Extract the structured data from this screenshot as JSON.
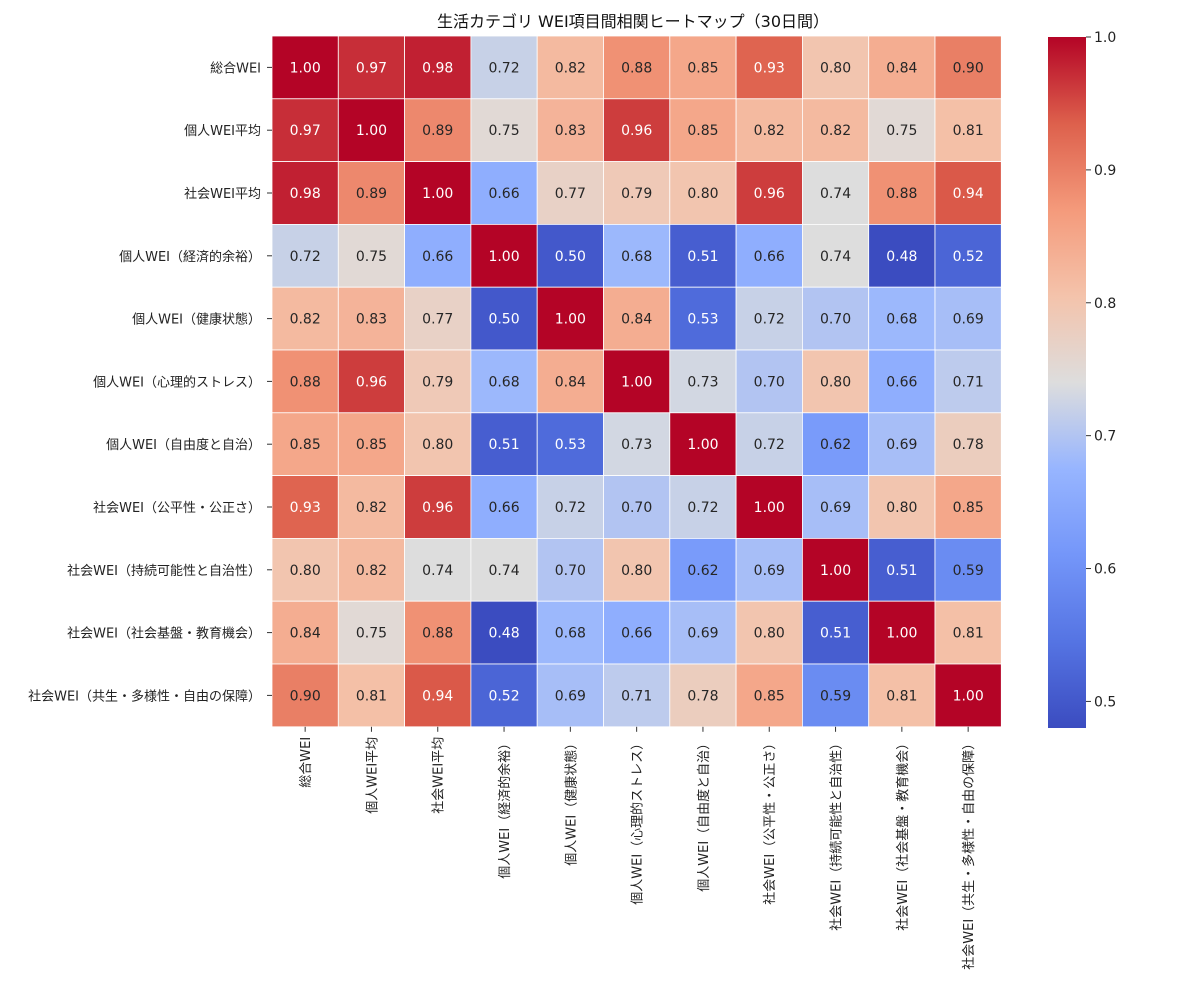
{
  "chart_data": {
    "type": "heatmap",
    "title": "生活カテゴリ WEI項目間相関ヒートマップ（30日間）",
    "row_labels": [
      "総合WEI",
      "個人WEI平均",
      "社会WEI平均",
      "個人WEI（経済的余裕）",
      "個人WEI（健康状態）",
      "個人WEI（心理的ストレス）",
      "個人WEI（自由度と自治）",
      "社会WEI（公平性・公正さ）",
      "社会WEI（持続可能性と自治性）",
      "社会WEI（社会基盤・教育機会）",
      "社会WEI（共生・多様性・自由の保障）"
    ],
    "col_labels": [
      "総合WEI",
      "個人WEI平均",
      "社会WEI平均",
      "個人WEI（経済的余裕）",
      "個人WEI（健康状態）",
      "個人WEI（心理的ストレス）",
      "個人WEI（自由度と自治）",
      "社会WEI（公平性・公正さ）",
      "社会WEI（持続可能性と自治性）",
      "社会WEI（社会基盤・教育機会）",
      "社会WEI（共生・多様性・自由の保障）"
    ],
    "values": [
      [
        1.0,
        0.97,
        0.98,
        0.72,
        0.82,
        0.88,
        0.85,
        0.93,
        0.8,
        0.84,
        0.9
      ],
      [
        0.97,
        1.0,
        0.89,
        0.75,
        0.83,
        0.96,
        0.85,
        0.82,
        0.82,
        0.75,
        0.81
      ],
      [
        0.98,
        0.89,
        1.0,
        0.66,
        0.77,
        0.79,
        0.8,
        0.96,
        0.74,
        0.88,
        0.94
      ],
      [
        0.72,
        0.75,
        0.66,
        1.0,
        0.5,
        0.68,
        0.51,
        0.66,
        0.74,
        0.48,
        0.52
      ],
      [
        0.82,
        0.83,
        0.77,
        0.5,
        1.0,
        0.84,
        0.53,
        0.72,
        0.7,
        0.68,
        0.69
      ],
      [
        0.88,
        0.96,
        0.79,
        0.68,
        0.84,
        1.0,
        0.73,
        0.7,
        0.8,
        0.66,
        0.71
      ],
      [
        0.85,
        0.85,
        0.8,
        0.51,
        0.53,
        0.73,
        1.0,
        0.72,
        0.62,
        0.69,
        0.78
      ],
      [
        0.93,
        0.82,
        0.96,
        0.66,
        0.72,
        0.7,
        0.72,
        1.0,
        0.69,
        0.8,
        0.85
      ],
      [
        0.8,
        0.82,
        0.74,
        0.74,
        0.7,
        0.8,
        0.62,
        0.69,
        1.0,
        0.51,
        0.59
      ],
      [
        0.84,
        0.75,
        0.88,
        0.48,
        0.68,
        0.66,
        0.69,
        0.8,
        0.51,
        1.0,
        0.81
      ],
      [
        0.9,
        0.81,
        0.94,
        0.52,
        0.69,
        0.71,
        0.78,
        0.85,
        0.59,
        0.81,
        1.0
      ]
    ],
    "colormap": "coolwarm",
    "vmin": 0.48,
    "vmax": 1.0,
    "colorbar_ticks": [
      "0.5",
      "0.6",
      "0.7",
      "0.8",
      "0.9",
      "1.0"
    ],
    "annotations": true,
    "value_format": "2 decimals"
  }
}
